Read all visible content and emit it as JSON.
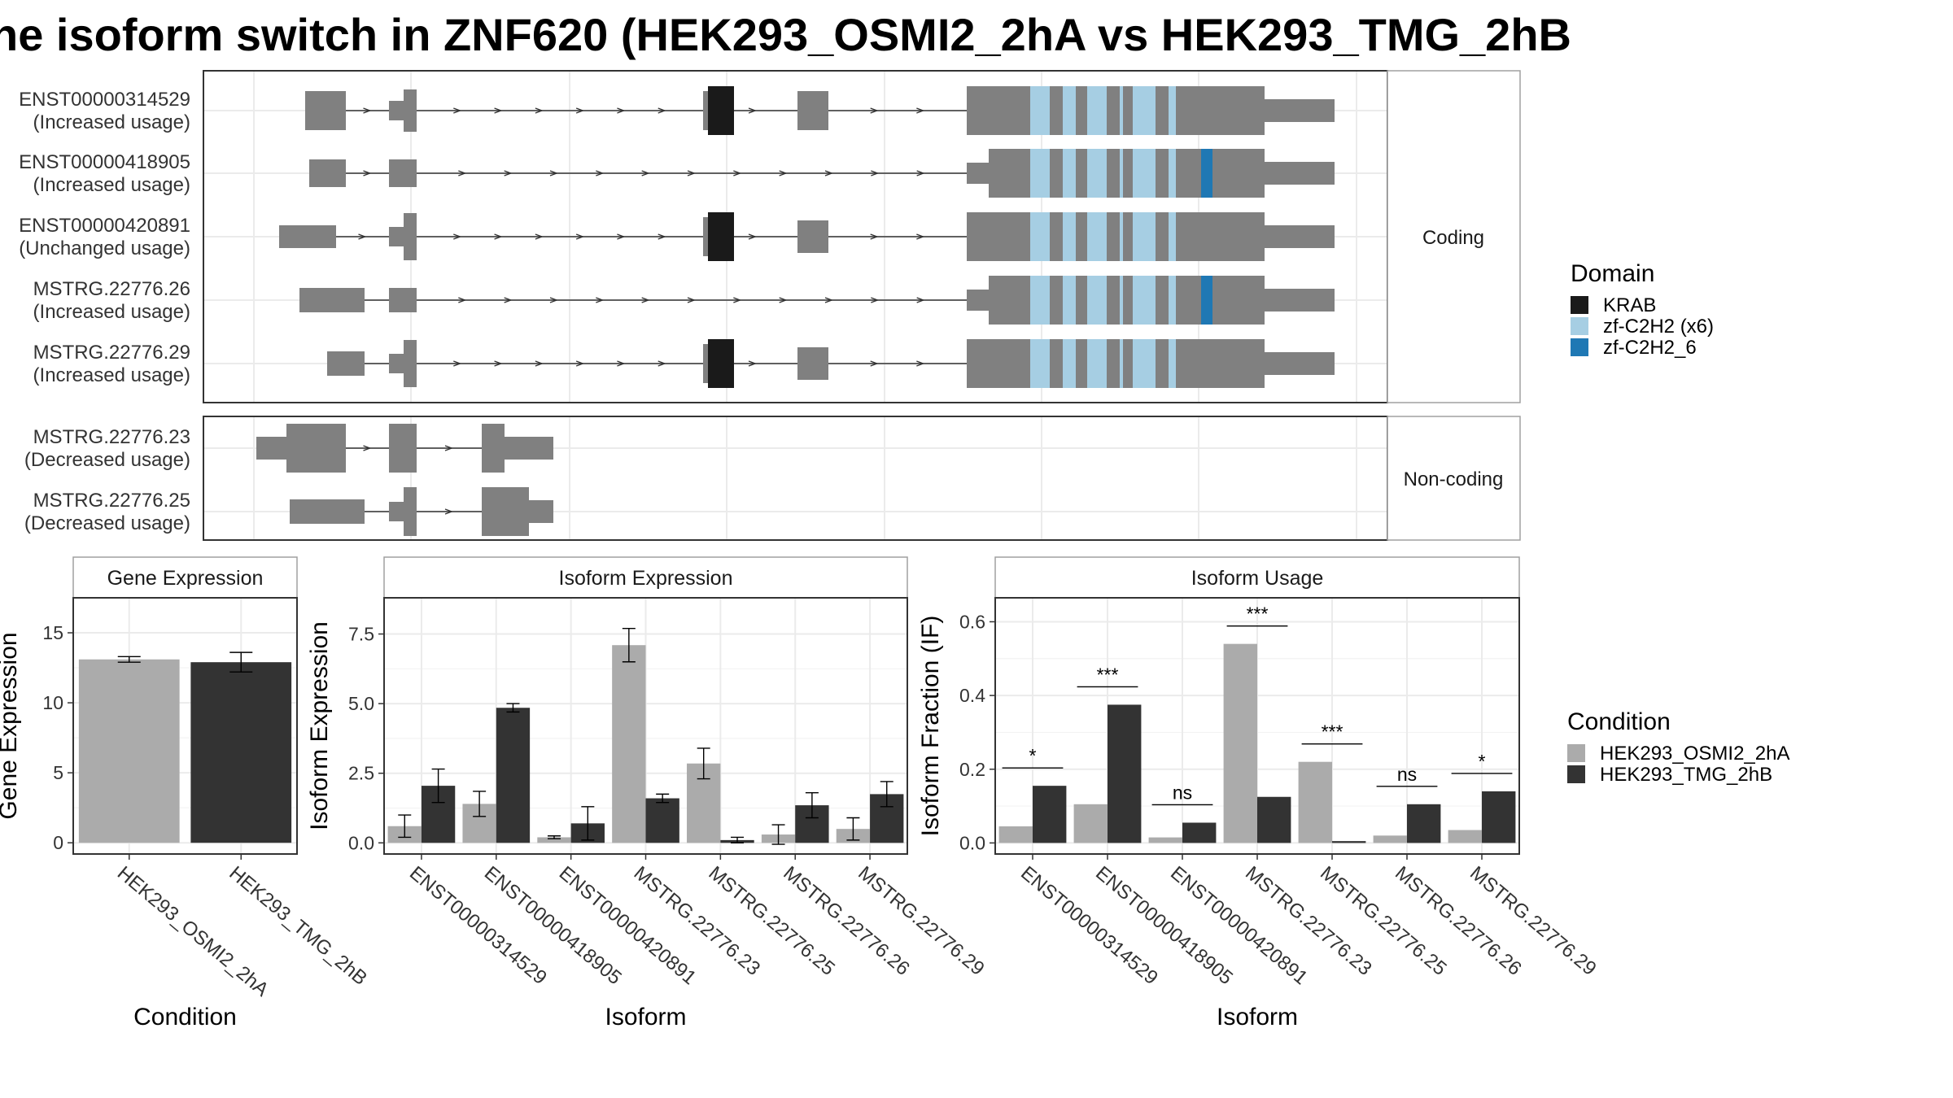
{
  "title": "he isoform switch in ZNF620 (HEK293_OSMI2_2hA vs HEK293_TMG_2hB",
  "colors": {
    "exon": "#808080",
    "krab": "#1a1a1a",
    "zf_x6": "#a6cee3",
    "zf_6": "#1f78b4",
    "cond_a": "#ababab",
    "cond_b": "#333333",
    "panel_border": "#333333",
    "strip_border": "#a0a0a0",
    "grid": "#ebebeb"
  },
  "structure": {
    "facets": [
      "Coding",
      "Non-coding"
    ],
    "coding": [
      {
        "id": "ENST00000314529",
        "usage": "(Increased usage)"
      },
      {
        "id": "ENST00000418905",
        "usage": "(Increased usage)"
      },
      {
        "id": "ENST00000420891",
        "usage": "(Unchanged usage)"
      },
      {
        "id": "MSTRG.22776.26",
        "usage": "(Increased usage)"
      },
      {
        "id": "MSTRG.22776.29",
        "usage": "(Increased usage)"
      }
    ],
    "noncoding": [
      {
        "id": "MSTRG.22776.23",
        "usage": "(Decreased usage)"
      },
      {
        "id": "MSTRG.22776.25",
        "usage": "(Decreased usage)"
      }
    ]
  },
  "domain_legend": {
    "title": "Domain",
    "items": [
      {
        "label": "KRAB",
        "color": "#1a1a1a"
      },
      {
        "label": "zf-C2H2 (x6)",
        "color": "#a6cee3"
      },
      {
        "label": "zf-C2H2_6",
        "color": "#1f78b4"
      }
    ]
  },
  "condition_legend": {
    "title": "Condition",
    "items": [
      {
        "label": "HEK293_OSMI2_2hA",
        "color": "#ababab"
      },
      {
        "label": "HEK293_TMG_2hB",
        "color": "#333333"
      }
    ]
  },
  "chart_data": [
    {
      "type": "bar",
      "title": "Gene Expression",
      "xlabel": "Condition",
      "ylabel": "Gene Expression",
      "categories": [
        "HEK293_OSMI2_2hA",
        "HEK293_TMG_2hB"
      ],
      "values": [
        13.1,
        12.9
      ],
      "errors": [
        0.2,
        0.7
      ],
      "ylim": [
        -0.8,
        17.5
      ],
      "yticks": [
        0,
        5,
        10,
        15
      ],
      "ytick_labels": [
        "0",
        "5",
        "10",
        "15"
      ]
    },
    {
      "type": "bar",
      "title": "Isoform Expression",
      "xlabel": "Isoform",
      "ylabel": "Isoform Expression",
      "categories": [
        "ENST00000314529",
        "ENST00000418905",
        "ENST00000420891",
        "MSTRG.22776.23",
        "MSTRG.22776.25",
        "MSTRG.22776.26",
        "MSTRG.22776.29"
      ],
      "series": [
        {
          "name": "HEK293_OSMI2_2hA",
          "values": [
            0.6,
            1.4,
            0.2,
            7.1,
            2.85,
            0.3,
            0.5
          ],
          "errors": [
            0.4,
            0.45,
            0.05,
            0.6,
            0.55,
            0.35,
            0.4
          ]
        },
        {
          "name": "HEK293_TMG_2hB",
          "values": [
            2.05,
            4.85,
            0.7,
            1.6,
            0.1,
            1.35,
            1.75
          ],
          "errors": [
            0.6,
            0.15,
            0.6,
            0.15,
            0.1,
            0.45,
            0.45
          ]
        }
      ],
      "ylim": [
        -0.4,
        8.8
      ],
      "yticks": [
        0,
        2.5,
        5,
        7.5
      ],
      "ytick_labels": [
        "0.0",
        "2.5",
        "5.0",
        "7.5"
      ]
    },
    {
      "type": "bar",
      "title": "Isoform Usage",
      "xlabel": "Isoform",
      "ylabel": "Isoform Fraction (IF)",
      "categories": [
        "ENST00000314529",
        "ENST00000418905",
        "ENST00000420891",
        "MSTRG.22776.23",
        "MSTRG.22776.25",
        "MSTRG.22776.26",
        "MSTRG.22776.29"
      ],
      "series": [
        {
          "name": "HEK293_OSMI2_2hA",
          "values": [
            0.045,
            0.105,
            0.015,
            0.54,
            0.22,
            0.02,
            0.035
          ]
        },
        {
          "name": "HEK293_TMG_2hB",
          "values": [
            0.155,
            0.375,
            0.055,
            0.125,
            0.005,
            0.105,
            0.14
          ]
        }
      ],
      "significance": [
        "*",
        "***",
        "ns",
        "***",
        "***",
        "ns",
        "*"
      ],
      "ylim": [
        -0.03,
        0.665
      ],
      "yticks": [
        0,
        0.2,
        0.4,
        0.6
      ],
      "ytick_labels": [
        "0.0",
        "0.2",
        "0.4",
        "0.6"
      ]
    }
  ]
}
